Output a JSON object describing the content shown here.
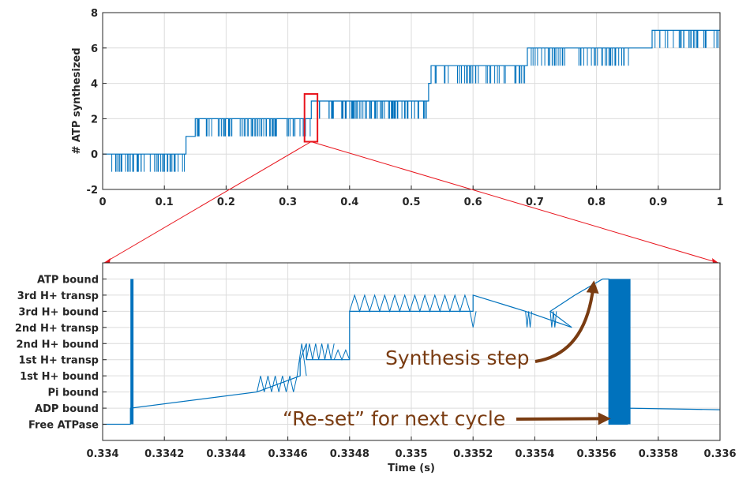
{
  "chart_data": [
    {
      "type": "line",
      "title": "",
      "xlabel": "",
      "ylabel": "# ATP synthesized",
      "xlim": [
        0,
        1
      ],
      "ylim": [
        -2,
        8
      ],
      "xticks": [
        0,
        0.1,
        0.2,
        0.3,
        0.4,
        0.5,
        0.6,
        0.7,
        0.8,
        0.9,
        1
      ],
      "xtick_labels": [
        "0",
        "0.1",
        "0.2",
        "0.3",
        "0.4",
        "0.5",
        "0.6",
        "0.7",
        "0.8",
        "0.9",
        "1"
      ],
      "yticks": [
        -2,
        0,
        2,
        4,
        6,
        8
      ],
      "ytick_labels": [
        "-2",
        "0",
        "2",
        "4",
        "6",
        "8"
      ],
      "grid": true,
      "line_color": "#0072bd",
      "highlight_color": "#e8141c",
      "highlight_box": {
        "x": [
          0.327,
          0.348
        ],
        "y": [
          0.7,
          3.4
        ]
      },
      "series": [
        {
          "x": [
            0,
            0.135,
            0.135,
            0.15,
            0.15,
            0.338,
            0.338,
            0.528,
            0.528,
            0.532,
            0.532,
            0.688,
            0.688,
            0.89,
            0.89,
            1
          ],
          "y": [
            0,
            0,
            1,
            1,
            2,
            2,
            3,
            3,
            4,
            4,
            5,
            5,
            6,
            6,
            7,
            7
          ],
          "noise_segments": [
            {
              "x": [
                0.0,
                0.133
              ],
              "level": 0,
              "dip": -1,
              "count": 42
            },
            {
              "x": [
                0.152,
                0.337
              ],
              "level": 2,
              "dip": 1,
              "count": 70
            },
            {
              "x": [
                0.35,
                0.525
              ],
              "level": 3,
              "dip": 2,
              "count": 78
            },
            {
              "x": [
                0.534,
                0.685
              ],
              "level": 4,
              "dip": 5,
              "count": 40
            },
            {
              "x": [
                0.69,
                0.86
              ],
              "level": 6,
              "dip": 5,
              "count": 48
            },
            {
              "x": [
                0.89,
                0.998
              ],
              "level": 7,
              "dip": 6,
              "count": 26
            }
          ]
        }
      ]
    },
    {
      "type": "line",
      "title": "",
      "xlabel": "Time (s)",
      "ylabel": "",
      "xlim": [
        0.334,
        0.336
      ],
      "xticks": [
        0.334,
        0.3342,
        0.3344,
        0.3346,
        0.3348,
        0.335,
        0.3352,
        0.3354,
        0.3356,
        0.3358,
        0.336
      ],
      "xtick_labels": [
        "0.334",
        "0.3342",
        "0.3344",
        "0.3346",
        "0.3348",
        "0.335",
        "0.3352",
        "0.3354",
        "0.3356",
        "0.3358",
        "0.336"
      ],
      "state_labels": [
        "Free ATPase",
        "ADP bound",
        "Pi bound",
        "1st H+ bound",
        "1st H+ transp",
        "2nd H+ bound",
        "2nd H+ transp",
        "3rd H+ bound",
        "3rd H+ transp",
        "ATP bound"
      ],
      "ylim": [
        -1,
        10
      ],
      "grid": true,
      "line_color": "#0072bd",
      "series": [
        {
          "x": [
            0.334,
            0.33409,
            0.33409,
            0.3345,
            0.3345,
            0.33464,
            0.33464,
            0.33466,
            0.33466,
            0.3348,
            0.3348,
            0.3352,
            0.3352,
            0.33537,
            0.33537,
            0.33552,
            0.33552,
            0.33545,
            0.33545,
            0.33553,
            0.33562,
            0.33564,
            0.33564,
            0.3357,
            0.3357,
            0.336
          ],
          "y": [
            0,
            0,
            1,
            2,
            2,
            3,
            4,
            5,
            4,
            4,
            7,
            7,
            8,
            7,
            7,
            6,
            6,
            7,
            7,
            8,
            9,
            9,
            0,
            0,
            1,
            0.9
          ],
          "dense_blocks": [
            {
              "x": [
                0.33409,
                0.3341
              ],
              "y": [
                0,
                9
              ]
            },
            {
              "x": [
                0.33564,
                0.33571
              ],
              "y": [
                0,
                9
              ]
            }
          ]
        }
      ],
      "annotations": [
        {
          "text": "Synthesis step",
          "points_to": [
            0.33559,
            8.6
          ]
        },
        {
          "text": "“Re-set” for next cycle",
          "points_to": [
            0.33563,
            0.35
          ]
        }
      ],
      "annotation_color": "#7a3c12"
    }
  ]
}
